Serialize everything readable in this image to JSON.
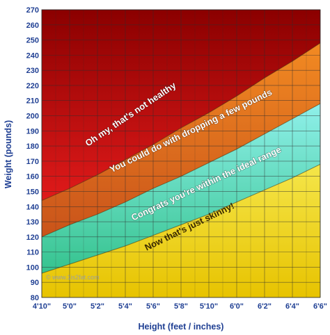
{
  "chart_data": {
    "type": "area",
    "xlabel": "Height (feet / inches)",
    "ylabel": "Weight (pounds)",
    "x_ticks": [
      "4'10\"",
      "5'0\"",
      "5'2\"",
      "5'4\"",
      "5'6\"",
      "5'8\"",
      "5'10\"",
      "6'0\"",
      "6'2\"",
      "6'4\"",
      "6'6\""
    ],
    "x_tick_inches": [
      58,
      60,
      62,
      64,
      66,
      68,
      70,
      72,
      74,
      76,
      78
    ],
    "ylim": [
      80,
      270
    ],
    "y_ticks": [
      80,
      90,
      100,
      110,
      120,
      130,
      140,
      150,
      160,
      170,
      180,
      190,
      200,
      210,
      220,
      230,
      240,
      250,
      260,
      270
    ],
    "grid": true,
    "boundaries": [
      {
        "name": "underweight-upper",
        "x": [
          58,
          60,
          62,
          64,
          66,
          68,
          70,
          72,
          74,
          76,
          78
        ],
        "values": [
          96,
          102,
          108,
          114,
          121,
          128,
          135,
          143,
          151,
          159,
          168
        ]
      },
      {
        "name": "ideal-upper",
        "x": [
          58,
          60,
          62,
          64,
          66,
          68,
          70,
          72,
          74,
          76,
          78
        ],
        "values": [
          120,
          128,
          135,
          143,
          152,
          160,
          169,
          178,
          188,
          198,
          208
        ]
      },
      {
        "name": "overweight-upper",
        "x": [
          58,
          60,
          62,
          64,
          66,
          68,
          70,
          72,
          74,
          76,
          78
        ],
        "values": [
          144,
          152,
          161,
          171,
          181,
          192,
          202,
          213,
          225,
          236,
          248
        ]
      }
    ],
    "zones": [
      {
        "label": "Now that's just skinny!",
        "color_top": "#f5e64a",
        "color_bottom": "#e7c300",
        "dark_text": true
      },
      {
        "label": "Congrats you're within the ideal range",
        "color_top": "#8ff0ea",
        "color_bottom": "#35c38e",
        "dark_text": false
      },
      {
        "label": "You could do with dropping a few pounds",
        "color_top": "#f28a22",
        "color_bottom": "#c9531a",
        "dark_text": false
      },
      {
        "label": "Oh my, that's not healthy",
        "color_top": "#8b0000",
        "color_bottom": "#e01a1a",
        "dark_text": false
      }
    ],
    "watermark": "© www.1is2fat.com"
  },
  "colors": {
    "axis_text": "#1f3f93",
    "grid": "#2d2d2d"
  }
}
